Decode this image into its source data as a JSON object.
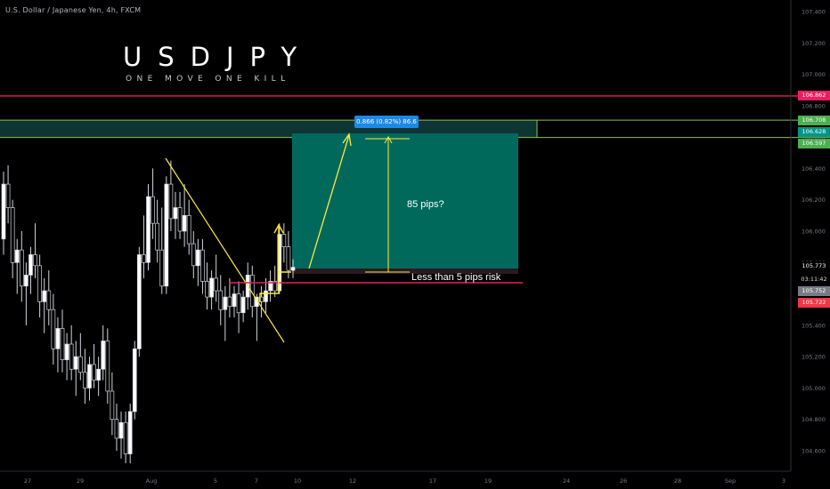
{
  "header": {
    "symbol_desc": "U.S. Dollar / Japanese Yen, 4h, FXCM"
  },
  "overlay": {
    "title": "USDJPY",
    "subtitle": "ONE MOVE ONE KILL"
  },
  "annotations": {
    "measure": "0.866 (0.82%) 86.6",
    "pips_question": "85 pips?",
    "risk": "Less than 5 pips risk"
  },
  "price_labels": {
    "red_line": "106.862",
    "green_top": "106.708",
    "green_mid": "106.628",
    "green_bottom": "106.597",
    "last": "105.773",
    "countdown": "03:11:42",
    "gray": "105.752",
    "red_bottom": "105.722"
  },
  "colors": {
    "background": "#000000",
    "bull": "#ffffff",
    "bear": "#000000",
    "resistance": "#e91e63",
    "zone": "#8bc34a",
    "target_box": "#00695c",
    "trendline": "#ffeb3b",
    "risk_line": "#e91e63"
  },
  "chart_data": {
    "type": "candlestick",
    "title": "USDJPY",
    "subtitle": "ONE MOVE ONE KILL",
    "y_ticks": [
      "107.400",
      "107.200",
      "107.000",
      "106.800",
      "106.600",
      "106.400",
      "106.200",
      "106.000",
      "105.800",
      "105.600",
      "105.400",
      "105.200",
      "105.000",
      "104.800",
      "104.600"
    ],
    "x_ticks": [
      "27",
      "29",
      "Aug",
      "5",
      "7",
      "10",
      "12",
      "17",
      "19",
      "24",
      "26",
      "28",
      "Sep",
      "3"
    ],
    "ylim": [
      104.52,
      107.42
    ],
    "levels": {
      "resistance": 106.862,
      "zone_top": 106.708,
      "zone_mid": 106.628,
      "zone_bottom": 106.597,
      "entry": 105.773,
      "stop": 105.722
    },
    "candles": [
      [
        105.95,
        106.38,
        105.85,
        106.3
      ],
      [
        106.3,
        106.42,
        106.05,
        106.15
      ],
      [
        106.15,
        106.2,
        105.7,
        105.8
      ],
      [
        105.8,
        105.95,
        105.6,
        105.88
      ],
      [
        105.88,
        106.0,
        105.55,
        105.65
      ],
      [
        105.65,
        105.8,
        105.4,
        105.72
      ],
      [
        105.72,
        105.9,
        105.6,
        105.85
      ],
      [
        105.85,
        106.05,
        105.7,
        105.78
      ],
      [
        105.78,
        105.85,
        105.45,
        105.55
      ],
      [
        105.55,
        105.7,
        105.35,
        105.62
      ],
      [
        105.62,
        105.75,
        105.4,
        105.5
      ],
      [
        105.5,
        105.6,
        105.15,
        105.25
      ],
      [
        105.25,
        105.45,
        105.1,
        105.38
      ],
      [
        105.38,
        105.5,
        105.1,
        105.18
      ],
      [
        105.18,
        105.35,
        105.05,
        105.28
      ],
      [
        105.28,
        105.4,
        105.05,
        105.12
      ],
      [
        105.12,
        105.3,
        104.95,
        105.2
      ],
      [
        105.2,
        105.35,
        105.05,
        105.1
      ],
      [
        105.1,
        105.25,
        104.9,
        105.0
      ],
      [
        105.0,
        105.2,
        104.92,
        105.15
      ],
      [
        105.15,
        105.28,
        105.0,
        105.05
      ],
      [
        105.05,
        105.2,
        104.95,
        105.12
      ],
      [
        105.12,
        105.4,
        105.05,
        105.3
      ],
      [
        105.3,
        105.38,
        104.9,
        104.98
      ],
      [
        104.98,
        105.1,
        104.7,
        104.8
      ],
      [
        104.8,
        104.9,
        104.6,
        104.68
      ],
      [
        104.68,
        104.85,
        104.55,
        104.78
      ],
      [
        104.78,
        104.85,
        104.52,
        104.58
      ],
      [
        104.58,
        104.9,
        104.52,
        104.85
      ],
      [
        104.85,
        105.3,
        104.8,
        105.25
      ],
      [
        105.25,
        105.9,
        105.2,
        105.85
      ],
      [
        105.85,
        106.1,
        105.7,
        105.8
      ],
      [
        105.8,
        106.3,
        105.75,
        106.22
      ],
      [
        106.22,
        106.4,
        105.95,
        106.05
      ],
      [
        106.05,
        106.2,
        105.8,
        105.88
      ],
      [
        105.88,
        106.15,
        105.6,
        105.65
      ],
      [
        105.65,
        106.35,
        105.6,
        106.3
      ],
      [
        106.3,
        106.45,
        106.0,
        106.08
      ],
      [
        106.08,
        106.25,
        105.95,
        106.15
      ],
      [
        106.15,
        106.25,
        105.95,
        106.0
      ],
      [
        106.0,
        106.3,
        105.9,
        106.1
      ],
      [
        106.1,
        106.2,
        105.85,
        105.92
      ],
      [
        105.92,
        106.0,
        105.7,
        105.78
      ],
      [
        105.78,
        105.95,
        105.65,
        105.88
      ],
      [
        105.88,
        105.95,
        105.6,
        105.68
      ],
      [
        105.68,
        105.8,
        105.5,
        105.58
      ],
      [
        105.58,
        105.75,
        105.5,
        105.7
      ],
      [
        105.7,
        105.85,
        105.55,
        105.62
      ],
      [
        105.62,
        105.72,
        105.4,
        105.5
      ],
      [
        105.5,
        105.65,
        105.3,
        105.58
      ],
      [
        105.58,
        105.7,
        105.45,
        105.52
      ],
      [
        105.52,
        105.65,
        105.45,
        105.6
      ],
      [
        105.6,
        105.68,
        105.35,
        105.48
      ],
      [
        105.48,
        105.62,
        105.42,
        105.58
      ],
      [
        105.58,
        105.8,
        105.5,
        105.72
      ],
      [
        105.72,
        105.78,
        105.45,
        105.52
      ],
      [
        105.52,
        105.6,
        105.3,
        105.58
      ],
      [
        105.58,
        105.65,
        105.45,
        105.55
      ],
      [
        105.55,
        105.7,
        105.48,
        105.62
      ],
      [
        105.62,
        105.75,
        105.55,
        105.68
      ],
      [
        105.68,
        105.78,
        105.58,
        105.62
      ],
      [
        105.62,
        106.05,
        105.6,
        105.98
      ],
      [
        105.98,
        106.05,
        105.8,
        105.9
      ],
      [
        105.9,
        106.0,
        105.7,
        105.75
      ],
      [
        105.75,
        105.82,
        105.7,
        105.77
      ]
    ]
  }
}
